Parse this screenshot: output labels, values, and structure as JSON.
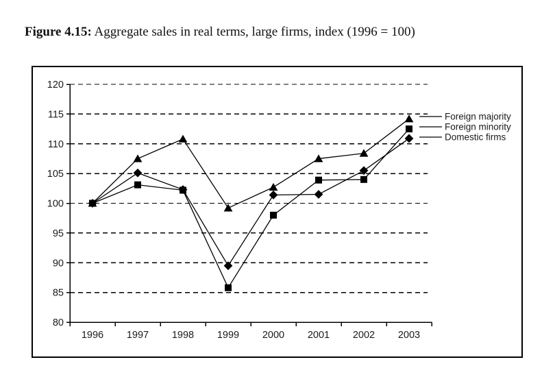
{
  "page": {
    "background": "#ffffff"
  },
  "title": {
    "figure_label": "Figure 4.15:",
    "text": " Aggregate sales in real terms, large firms, index (1996 = 100)"
  },
  "chart_data": {
    "type": "line",
    "title": "Aggregate sales in real terms, large firms, index (1996 = 100)",
    "categories": [
      "1996",
      "1997",
      "1998",
      "1999",
      "2000",
      "2001",
      "2002",
      "2003"
    ],
    "series": [
      {
        "name": "Foreign majority",
        "marker": "triangle",
        "values": [
          100,
          107.5,
          110.8,
          99.2,
          102.7,
          107.5,
          108.4,
          114.2
        ]
      },
      {
        "name": "Foreign minority",
        "marker": "square",
        "values": [
          100,
          103.1,
          102.2,
          85.8,
          98.0,
          103.9,
          104.0,
          112.5
        ]
      },
      {
        "name": "Domestic firms",
        "marker": "diamond",
        "values": [
          100,
          105.1,
          102.3,
          89.5,
          101.4,
          101.5,
          105.5,
          110.9
        ]
      }
    ],
    "xlabel": "",
    "ylabel": "",
    "ylim": [
      80,
      120
    ],
    "ytick_step": 5,
    "grid": "horizontal-dashed",
    "legend_position": "right-outside",
    "line_color": "#000000",
    "marker_color": "#000000",
    "text_color": "#1a1a1a"
  }
}
